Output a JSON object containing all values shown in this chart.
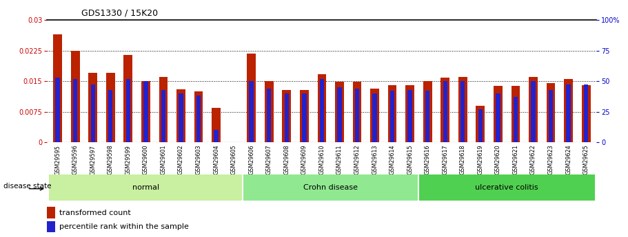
{
  "title": "GDS1330 / 15K20",
  "categories": [
    "GSM29595",
    "GSM29596",
    "GSM29597",
    "GSM29598",
    "GSM29599",
    "GSM29600",
    "GSM29601",
    "GSM29602",
    "GSM29603",
    "GSM29604",
    "GSM29605",
    "GSM29606",
    "GSM29607",
    "GSM29608",
    "GSM29609",
    "GSM29610",
    "GSM29611",
    "GSM29612",
    "GSM29613",
    "GSM29614",
    "GSM29615",
    "GSM29616",
    "GSM29617",
    "GSM29618",
    "GSM29619",
    "GSM29620",
    "GSM29621",
    "GSM29622",
    "GSM29623",
    "GSM29624",
    "GSM29625"
  ],
  "transformed_count": [
    0.0265,
    0.0225,
    0.017,
    0.017,
    0.0215,
    0.015,
    0.016,
    0.013,
    0.0125,
    0.0085,
    0.0,
    0.0218,
    0.015,
    0.0128,
    0.0128,
    0.0168,
    0.0148,
    0.0148,
    0.0132,
    0.014,
    0.014,
    0.015,
    0.0158,
    0.016,
    0.009,
    0.0138,
    0.0138,
    0.016,
    0.0145,
    0.0155,
    0.014
  ],
  "percentile_rank": [
    53,
    52,
    47,
    43,
    52,
    50,
    43,
    40,
    38,
    10,
    0,
    50,
    44,
    40,
    40,
    52,
    45,
    44,
    40,
    42,
    43,
    42,
    50,
    50,
    27,
    40,
    37,
    50,
    43,
    47,
    47
  ],
  "disease_groups": [
    {
      "label": "normal",
      "start": 0,
      "end": 10,
      "color": "#c8f0a0"
    },
    {
      "label": "Crohn disease",
      "start": 11,
      "end": 20,
      "color": "#90e890"
    },
    {
      "label": "ulcerative colitis",
      "start": 21,
      "end": 30,
      "color": "#50d050"
    }
  ],
  "bar_color_red": "#bb2200",
  "bar_color_blue": "#2222cc",
  "left_axis_color": "#cc0000",
  "right_axis_color": "#0000cc",
  "ylim_left": [
    0,
    0.03
  ],
  "ylim_right": [
    0,
    100
  ],
  "yticks_left": [
    0,
    0.0075,
    0.015,
    0.0225,
    0.03
  ],
  "ytick_labels_left": [
    "0",
    "0.0075",
    "0.015",
    "0.0225",
    "0.03"
  ],
  "yticks_right": [
    0,
    25,
    50,
    75,
    100
  ],
  "ytick_labels_right": [
    "0",
    "25",
    "50",
    "75",
    "100%"
  ],
  "legend_transformed": "transformed count",
  "legend_percentile": "percentile rank within the sample",
  "disease_state_label": "disease state",
  "red_bar_width": 0.5,
  "blue_bar_width": 0.25,
  "xtick_gray": "#c8c8c8",
  "fig_width": 9.11,
  "fig_height": 3.45,
  "dpi": 100
}
